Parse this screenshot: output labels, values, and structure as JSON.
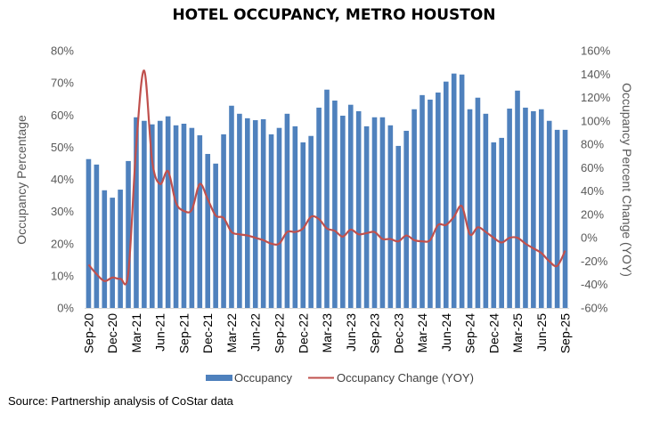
{
  "chart_data": {
    "type": "bar+line",
    "title": "HOTEL OCCUPANCY, METRO HOUSTON",
    "ylabel": "Occupancy Percentage",
    "y2label": "Occupancy  Percent Change (YOY)",
    "ylim": [
      0,
      80
    ],
    "y2lim": [
      -60,
      160
    ],
    "yticks": [
      "0%",
      "10%",
      "20%",
      "30%",
      "40%",
      "50%",
      "60%",
      "70%",
      "80%"
    ],
    "y2ticks": [
      "-60%",
      "-40%",
      "-20%",
      "0%",
      "20%",
      "40%",
      "60%",
      "80%",
      "100%",
      "120%",
      "140%",
      "160%"
    ],
    "xtick_labels": [
      "Sep-20",
      "Dec-20",
      "Mar-21",
      "Jun-21",
      "Sep-21",
      "Dec-21",
      "Mar-22",
      "Jun-22",
      "Sep-22",
      "Dec-22",
      "Mar-23",
      "Jun-23",
      "Sep-23",
      "Dec-23",
      "Mar-24",
      "Jun-24",
      "Sep-24",
      "Dec-24",
      "Mar-25",
      "Jun-25",
      "Sep-25"
    ],
    "x_start": "Sep-20",
    "x_end": "Sep-25",
    "n_months": 61,
    "legend_position": "bottom",
    "series": [
      {
        "name": "Occupancy",
        "type": "bar",
        "axis": "left",
        "color": "#4F81BD",
        "values": [
          46.3,
          44.6,
          36.6,
          34.3,
          36.8,
          45.7,
          59.3,
          58.2,
          57.1,
          58.2,
          59.6,
          56.8,
          57.3,
          56.0,
          53.7,
          47.9,
          44.9,
          54.0,
          62.9,
          60.4,
          59.0,
          58.4,
          58.7,
          54.0,
          56.0,
          60.4,
          56.5,
          51.5,
          53.5,
          62.3,
          67.9,
          64.5,
          59.8,
          63.2,
          61.2,
          56.5,
          59.3,
          59.3,
          56.8,
          50.4,
          55.1,
          61.8,
          66.2,
          64.8,
          67.0,
          70.4,
          72.9,
          72.6,
          61.8,
          65.4,
          60.4,
          51.5,
          52.9,
          62.0,
          67.6,
          62.3,
          61.2,
          61.8,
          58.2,
          55.4,
          55.4
        ]
      },
      {
        "name": "Occupancy Change (YOY)",
        "type": "line",
        "axis": "right",
        "color": "#C0504D",
        "values": [
          -23,
          -31,
          -37,
          -34,
          -35,
          -30,
          79,
          143,
          66,
          46,
          57,
          30,
          23,
          24,
          46,
          33,
          19,
          17,
          5,
          3,
          2,
          0,
          -2,
          -5,
          -5,
          5,
          5,
          8,
          18,
          16,
          8,
          6,
          1,
          7,
          3,
          4,
          5,
          -1,
          -1,
          -3,
          2,
          -2,
          -3,
          -2,
          11,
          11,
          18,
          27,
          3,
          9,
          5,
          0,
          -4,
          0,
          0,
          -5,
          -9,
          -13,
          -20,
          -24,
          -11
        ]
      }
    ]
  },
  "source": "Source: Partnership analysis of CoStar data"
}
